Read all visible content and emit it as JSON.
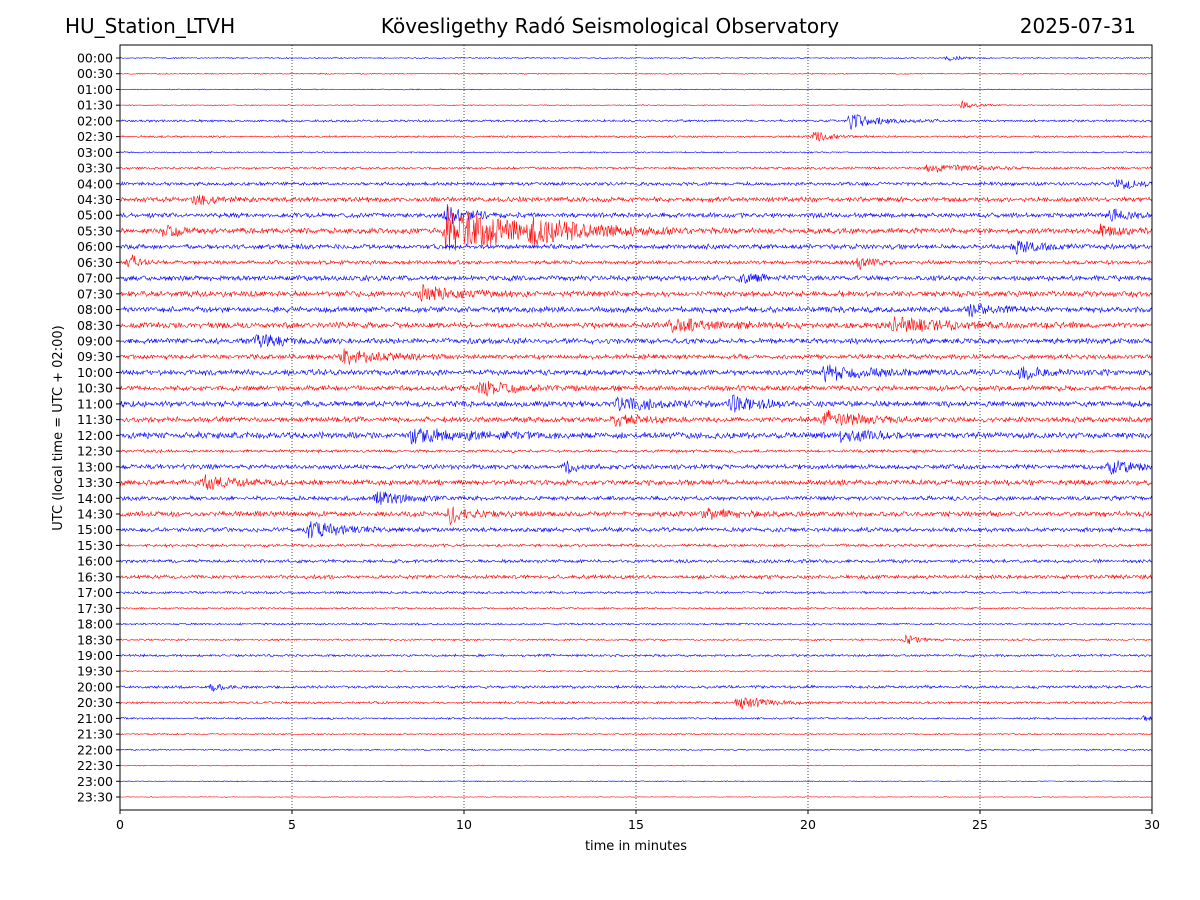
{
  "header": {
    "station": "HU_Station_LTVH",
    "title": "Kövesligethy Radó Seismological Observatory",
    "date": "2025-07-31"
  },
  "chart_data": {
    "type": "line",
    "title": "Kövesligethy Radó Seismological Observatory",
    "xlabel": "time in minutes",
    "ylabel": "UTC (local time = UTC + 02:00)",
    "xlim": [
      0,
      30
    ],
    "x_ticks": [
      "0",
      "5",
      "10",
      "15",
      "20",
      "25",
      "30"
    ],
    "row_labels": [
      "00:00",
      "00:30",
      "01:00",
      "01:30",
      "02:00",
      "02:30",
      "03:00",
      "03:30",
      "04:00",
      "04:30",
      "05:00",
      "05:30",
      "06:00",
      "06:30",
      "07:00",
      "07:30",
      "08:00",
      "08:30",
      "09:00",
      "09:30",
      "10:00",
      "10:30",
      "11:00",
      "11:30",
      "12:00",
      "12:30",
      "13:00",
      "13:30",
      "14:00",
      "14:30",
      "15:00",
      "15:30",
      "16:00",
      "16:30",
      "17:00",
      "17:30",
      "18:00",
      "18:30",
      "19:00",
      "19:30",
      "20:00",
      "20:30",
      "21:00",
      "21:30",
      "22:00",
      "22:30",
      "23:00",
      "23:30"
    ],
    "row_colors": [
      "#0000ff",
      "#ff0000"
    ],
    "grid": "vertical dotted at each x tick",
    "row_noise": [
      0.5,
      0.5,
      0.4,
      0.4,
      1.0,
      0.8,
      0.6,
      1.0,
      1.4,
      2.0,
      2.0,
      2.4,
      2.0,
      1.6,
      2.2,
      2.4,
      2.4,
      2.4,
      2.2,
      2.0,
      2.4,
      2.2,
      2.4,
      2.2,
      2.6,
      1.2,
      2.0,
      2.2,
      1.8,
      2.2,
      1.8,
      1.2,
      1.4,
      1.6,
      1.0,
      0.8,
      0.8,
      0.8,
      1.0,
      0.6,
      1.2,
      1.0,
      0.8,
      0.6,
      0.6,
      0.4,
      0.4,
      0.3
    ],
    "events": [
      {
        "row": 0,
        "minute": 24.1,
        "amplitude": 3,
        "duration": 0.5
      },
      {
        "row": 3,
        "minute": 24.5,
        "amplitude": 4,
        "duration": 0.6
      },
      {
        "row": 4,
        "minute": 21.2,
        "amplitude": 8,
        "duration": 1.2
      },
      {
        "row": 5,
        "minute": 20.2,
        "amplitude": 5,
        "duration": 0.8
      },
      {
        "row": 7,
        "minute": 23.5,
        "amplitude": 4,
        "duration": 2.0
      },
      {
        "row": 8,
        "minute": 29.0,
        "amplitude": 5,
        "duration": 1.2
      },
      {
        "row": 9,
        "minute": 2.2,
        "amplitude": 5,
        "duration": 1.0
      },
      {
        "row": 10,
        "minute": 9.5,
        "amplitude": 9,
        "duration": 1.0
      },
      {
        "row": 10,
        "minute": 28.8,
        "amplitude": 5,
        "duration": 1.2
      },
      {
        "row": 11,
        "minute": 9.5,
        "amplitude": 24,
        "duration": 3.0
      },
      {
        "row": 11,
        "minute": 12.0,
        "amplitude": 8,
        "duration": 2.5
      },
      {
        "row": 11,
        "minute": 1.3,
        "amplitude": 5,
        "duration": 1.0
      },
      {
        "row": 11,
        "minute": 28.5,
        "amplitude": 5,
        "duration": 1.0
      },
      {
        "row": 12,
        "minute": 26.0,
        "amplitude": 6,
        "duration": 1.2
      },
      {
        "row": 13,
        "minute": 0.3,
        "amplitude": 8,
        "duration": 0.4
      },
      {
        "row": 13,
        "minute": 21.5,
        "amplitude": 6,
        "duration": 0.5
      },
      {
        "row": 14,
        "minute": 18.0,
        "amplitude": 5,
        "duration": 1.0
      },
      {
        "row": 15,
        "minute": 8.8,
        "amplitude": 7,
        "duration": 1.5
      },
      {
        "row": 16,
        "minute": 24.7,
        "amplitude": 7,
        "duration": 1.0
      },
      {
        "row": 17,
        "minute": 22.5,
        "amplitude": 7,
        "duration": 2.5
      },
      {
        "row": 17,
        "minute": 16.0,
        "amplitude": 6,
        "duration": 2.0
      },
      {
        "row": 18,
        "minute": 4.0,
        "amplitude": 6,
        "duration": 1.2
      },
      {
        "row": 19,
        "minute": 6.5,
        "amplitude": 8,
        "duration": 1.5
      },
      {
        "row": 20,
        "minute": 20.5,
        "amplitude": 7,
        "duration": 2.0
      },
      {
        "row": 20,
        "minute": 26.2,
        "amplitude": 6,
        "duration": 1.0
      },
      {
        "row": 21,
        "minute": 10.5,
        "amplitude": 6,
        "duration": 1.5
      },
      {
        "row": 22,
        "minute": 14.5,
        "amplitude": 6,
        "duration": 2.0
      },
      {
        "row": 22,
        "minute": 17.8,
        "amplitude": 7,
        "duration": 1.2
      },
      {
        "row": 23,
        "minute": 14.4,
        "amplitude": 6,
        "duration": 1.0
      },
      {
        "row": 23,
        "minute": 20.5,
        "amplitude": 8,
        "duration": 1.5
      },
      {
        "row": 24,
        "minute": 8.5,
        "amplitude": 6,
        "duration": 2.5
      },
      {
        "row": 24,
        "minute": 21.0,
        "amplitude": 6,
        "duration": 1.2
      },
      {
        "row": 26,
        "minute": 28.8,
        "amplitude": 7,
        "duration": 1.2
      },
      {
        "row": 26,
        "minute": 13.0,
        "amplitude": 5,
        "duration": 0.6
      },
      {
        "row": 27,
        "minute": 2.5,
        "amplitude": 6,
        "duration": 1.5
      },
      {
        "row": 28,
        "minute": 7.5,
        "amplitude": 6,
        "duration": 1.5
      },
      {
        "row": 29,
        "minute": 9.6,
        "amplitude": 8,
        "duration": 1.0
      },
      {
        "row": 29,
        "minute": 17.0,
        "amplitude": 6,
        "duration": 1.0
      },
      {
        "row": 30,
        "minute": 5.5,
        "amplitude": 8,
        "duration": 1.5
      },
      {
        "row": 37,
        "minute": 22.8,
        "amplitude": 6,
        "duration": 0.6
      },
      {
        "row": 40,
        "minute": 2.7,
        "amplitude": 4,
        "duration": 0.5
      },
      {
        "row": 41,
        "minute": 18.0,
        "amplitude": 7,
        "duration": 1.2
      },
      {
        "row": 42,
        "minute": 29.8,
        "amplitude": 3,
        "duration": 0.4
      }
    ]
  }
}
